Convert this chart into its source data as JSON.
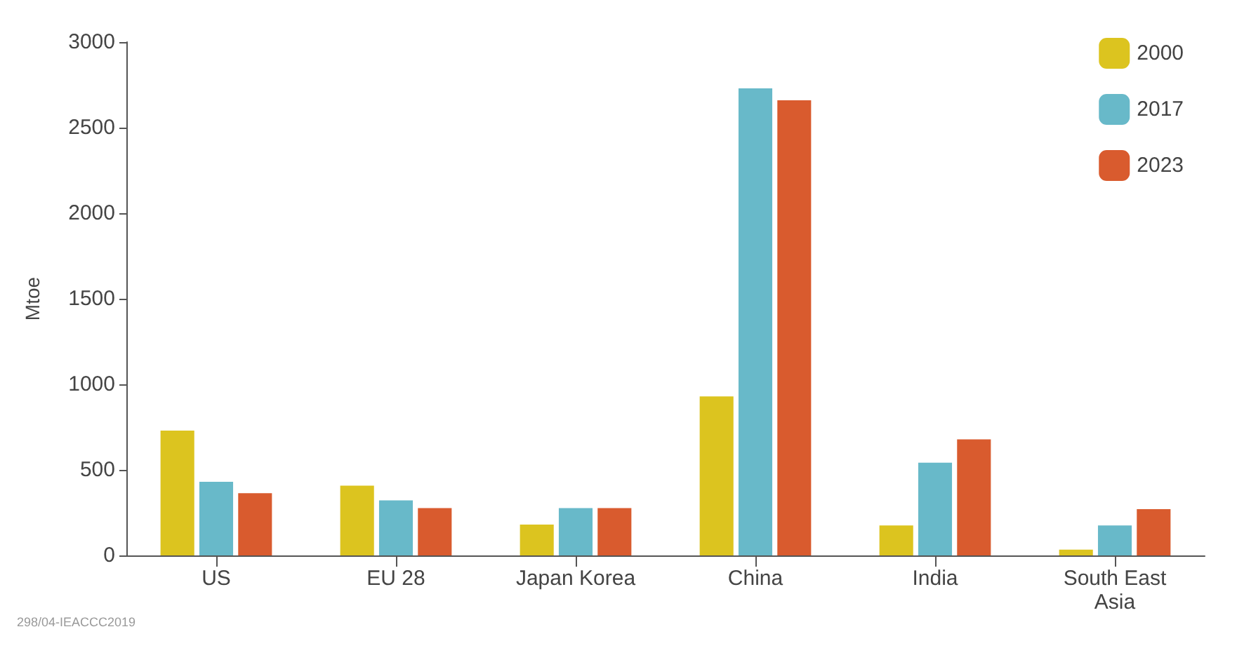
{
  "chart_data": {
    "type": "bar",
    "ylabel": "Mtoe",
    "categories": [
      "US",
      "EU 28",
      "Japan Korea",
      "China",
      "India",
      "South East\nAsia"
    ],
    "series": [
      {
        "name": "2000",
        "color": "#dcc41f",
        "values": [
          730,
          408,
          180,
          929,
          175,
          34
        ]
      },
      {
        "name": "2017",
        "color": "#68b9c9",
        "values": [
          430,
          322,
          277,
          2730,
          542,
          175
        ]
      },
      {
        "name": "2023",
        "color": "#d95b2e",
        "values": [
          364,
          277,
          277,
          2660,
          678,
          270
        ]
      }
    ],
    "ylim": [
      0,
      3000
    ],
    "yticks": [
      0,
      500,
      1000,
      1500,
      2000,
      2500,
      3000
    ],
    "grid": false,
    "legend": "top right",
    "annotations": [
      "298/04-IEACCC2019"
    ]
  }
}
